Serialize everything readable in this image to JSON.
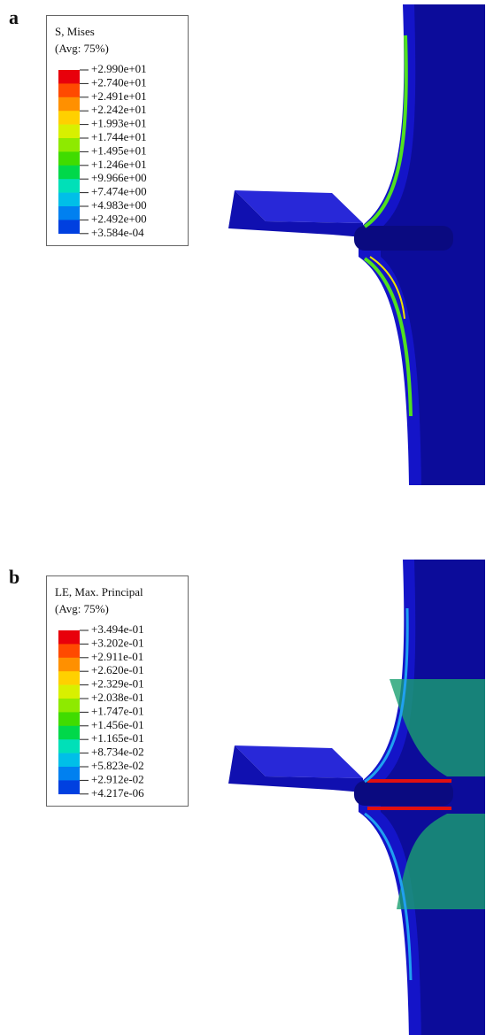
{
  "panels": [
    {
      "label": "a",
      "legend": {
        "title": "S, Mises",
        "subtitle": "(Avg: 75%)",
        "levels": [
          "+2.990e+01",
          "+2.740e+01",
          "+2.491e+01",
          "+2.242e+01",
          "+1.993e+01",
          "+1.744e+01",
          "+1.495e+01",
          "+1.246e+01",
          "+9.966e+00",
          "+7.474e+00",
          "+4.983e+00",
          "+2.492e+00",
          "+3.584e-04"
        ]
      }
    },
    {
      "label": "b",
      "legend": {
        "title": "LE, Max. Principal",
        "subtitle": "(Avg: 75%)",
        "levels": [
          "+3.494e-01",
          "+3.202e-01",
          "+2.911e-01",
          "+2.620e-01",
          "+2.329e-01",
          "+2.038e-01",
          "+1.747e-01",
          "+1.456e-01",
          "+1.165e-01",
          "+8.734e-02",
          "+5.823e-02",
          "+2.912e-02",
          "+4.217e-06"
        ]
      }
    }
  ]
}
